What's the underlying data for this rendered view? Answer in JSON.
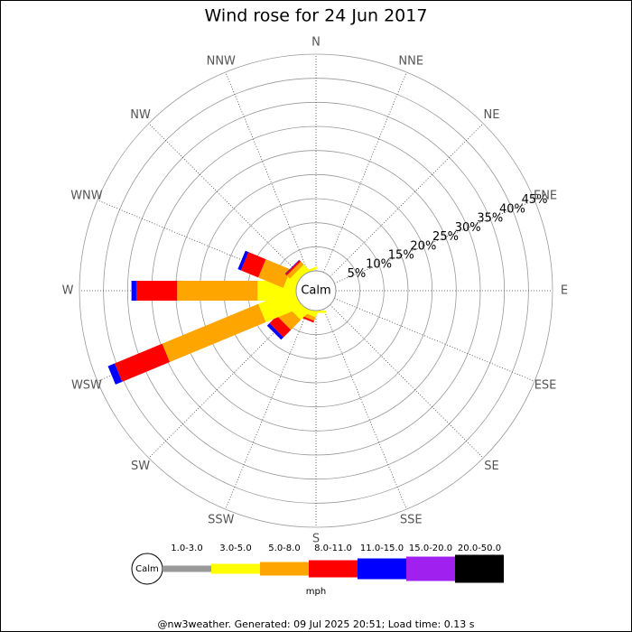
{
  "chart_data": {
    "type": "windrose",
    "title": "Wind rose for 24 Jun 2017",
    "calm_label": "Calm",
    "directions": [
      "N",
      "NNE",
      "NE",
      "ENE",
      "E",
      "ESE",
      "SE",
      "SSE",
      "S",
      "SSW",
      "SW",
      "WSW",
      "W",
      "WNW",
      "NW",
      "NNW"
    ],
    "rlim": [
      0,
      45
    ],
    "rticks": [
      {
        "value": 5,
        "label": "5%"
      },
      {
        "value": 10,
        "label": "10%"
      },
      {
        "value": 15,
        "label": "15%"
      },
      {
        "value": 20,
        "label": "20%"
      },
      {
        "value": 25,
        "label": "25%"
      },
      {
        "value": 30,
        "label": "30%"
      },
      {
        "value": 35,
        "label": "35%"
      },
      {
        "value": 40,
        "label": "40%"
      },
      {
        "value": 45,
        "label": "45%"
      }
    ],
    "grid": true,
    "legend_title": "mph",
    "series": [
      {
        "name": "1.0-3.0",
        "color": "#999999",
        "values": [
          0,
          0,
          0,
          0,
          0,
          0,
          0,
          0,
          0,
          0,
          0,
          0,
          0,
          0,
          0,
          0
        ]
      },
      {
        "name": "3.0-5.0",
        "color": "#ffff00",
        "values": [
          0,
          0,
          0,
          0,
          0,
          0,
          0,
          0,
          0.5,
          1,
          2.4,
          8,
          8,
          2.4,
          1.5,
          0.5
        ]
      },
      {
        "name": "5.0-8.0",
        "color": "#ffa500",
        "values": [
          0,
          0,
          0,
          0,
          0,
          0,
          0,
          0,
          0,
          0.8,
          2.9,
          21.6,
          16.7,
          5.6,
          0.9,
          0
        ]
      },
      {
        "name": "8.0-11.0",
        "color": "#ff0000",
        "values": [
          0,
          0,
          0,
          0,
          0,
          0,
          0,
          0,
          0,
          0.4,
          2.2,
          10.7,
          8.5,
          3.9,
          0.4,
          0
        ]
      },
      {
        "name": "11.0-15.0",
        "color": "#0000ff",
        "values": [
          0,
          0,
          0,
          0,
          0,
          0,
          0,
          0,
          0,
          0,
          0.7,
          1.5,
          1,
          0.7,
          0.1,
          0
        ]
      },
      {
        "name": "15.0-20.0",
        "color": "#a020f0",
        "values": [
          0,
          0,
          0,
          0,
          0,
          0,
          0,
          0,
          0,
          0,
          0,
          0,
          0,
          0,
          0,
          0
        ]
      },
      {
        "name": "20.0-50.0",
        "color": "#000000",
        "values": [
          0,
          0,
          0,
          0,
          0,
          0,
          0,
          0,
          0,
          0,
          0,
          0,
          0,
          0,
          0,
          0
        ]
      }
    ],
    "footer": "@nw3weather. Generated: 09 Jul 2025 20:51; Load time: 0.13 s"
  }
}
